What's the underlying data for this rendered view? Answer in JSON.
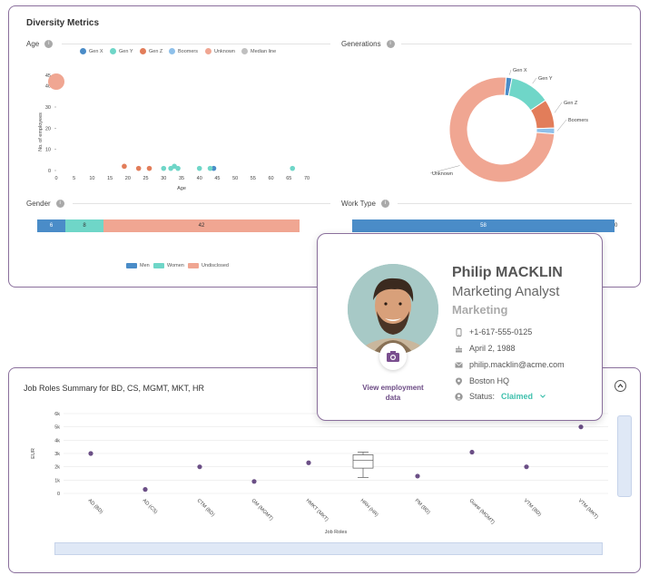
{
  "diversity": {
    "title": "Diversity Metrics",
    "age": {
      "label": "Age",
      "legend": [
        {
          "name": "Gen X",
          "color": "#4a8cc8"
        },
        {
          "name": "Gen Y",
          "color": "#6fd6c8"
        },
        {
          "name": "Gen Z",
          "color": "#e27d5a"
        },
        {
          "name": "Boomers",
          "color": "#8ec0ea"
        },
        {
          "name": "Unknown",
          "color": "#f0a692"
        },
        {
          "name": "Median line",
          "color": "#c0c0c0"
        }
      ],
      "ylabel": "No. of employees",
      "xlabel": "Age",
      "yticks": [
        "0",
        "10",
        "20",
        "30",
        "40",
        "45"
      ],
      "xticks": [
        "0",
        "5",
        "10",
        "15",
        "20",
        "25",
        "30",
        "35",
        "40",
        "45",
        "50",
        "55",
        "60",
        "65",
        "70"
      ]
    },
    "generations": {
      "label": "Generations",
      "slices": [
        "Gen X",
        "Gen Y",
        "Gen Z",
        "Boomers",
        "Unknown"
      ]
    },
    "gender": {
      "label": "Gender",
      "values": [
        "6",
        "8",
        "42"
      ],
      "legend": [
        "Men",
        "Women",
        "Undisclosed"
      ]
    },
    "worktype": {
      "label": "Work Type",
      "value": "58",
      "end_value": "0"
    }
  },
  "profile": {
    "name": "Philip MACKLIN",
    "title": "Marketing Analyst",
    "department": "Marketing",
    "phone": "+1-617-555-0125",
    "birthday": "April 2, 1988",
    "email": "philip.macklin@acme.com",
    "location": "Boston HQ",
    "status_label": "Status:",
    "status_value": "Claimed",
    "view_link": "View employment data"
  },
  "jobroles": {
    "title": "Job Roles Summary for BD, CS, MGMT, MKT, HR",
    "ylabel": "EUR",
    "xlabel": "Job Roles",
    "yticks": [
      "0",
      "1k",
      "2k",
      "3k",
      "4k",
      "5k",
      "6k"
    ]
  },
  "chart_data": [
    {
      "type": "scatter",
      "title": "Age",
      "xlabel": "Age",
      "ylabel": "No. of employees",
      "xlim": [
        0,
        70
      ],
      "ylim": [
        0,
        45
      ],
      "series": [
        {
          "name": "Gen X",
          "points": [
            [
              44,
              1
            ]
          ]
        },
        {
          "name": "Gen Y",
          "points": [
            [
              30,
              1
            ],
            [
              32,
              1
            ],
            [
              33,
              2
            ],
            [
              34,
              1
            ],
            [
              40,
              1
            ],
            [
              43,
              1
            ],
            [
              66,
              1
            ]
          ]
        },
        {
          "name": "Gen Z",
          "points": [
            [
              19,
              2
            ],
            [
              23,
              1
            ],
            [
              26,
              1
            ]
          ]
        },
        {
          "name": "Boomers",
          "points": []
        },
        {
          "name": "Unknown",
          "points": [
            [
              0,
              42
            ]
          ]
        }
      ]
    },
    {
      "type": "pie",
      "title": "Generations",
      "categories": [
        "Gen X",
        "Gen Y",
        "Gen Z",
        "Boomers",
        "Unknown"
      ],
      "values": [
        1,
        7,
        5,
        1,
        42
      ]
    },
    {
      "type": "bar",
      "title": "Gender",
      "categories": [
        "Men",
        "Women",
        "Undisclosed"
      ],
      "values": [
        6,
        8,
        42
      ]
    },
    {
      "type": "scatter",
      "title": "Job Roles Summary for BD, CS, MGMT, MKT, HR",
      "xlabel": "Job Roles",
      "ylabel": "EUR",
      "ylim": [
        0,
        6000
      ],
      "categories": [
        "AD (BD)",
        "AD (CS)",
        "CTM (BD)",
        "GM (MGMT)",
        "HMKT (MKT)",
        "HRH (HR)",
        "PM (BD)",
        "Guest (MGMT)",
        "VTM (BD)",
        "VTM (MKT)"
      ],
      "values": [
        3000,
        300,
        2000,
        900,
        2300,
        2500,
        1300,
        3100,
        2000,
        5000
      ]
    }
  ]
}
